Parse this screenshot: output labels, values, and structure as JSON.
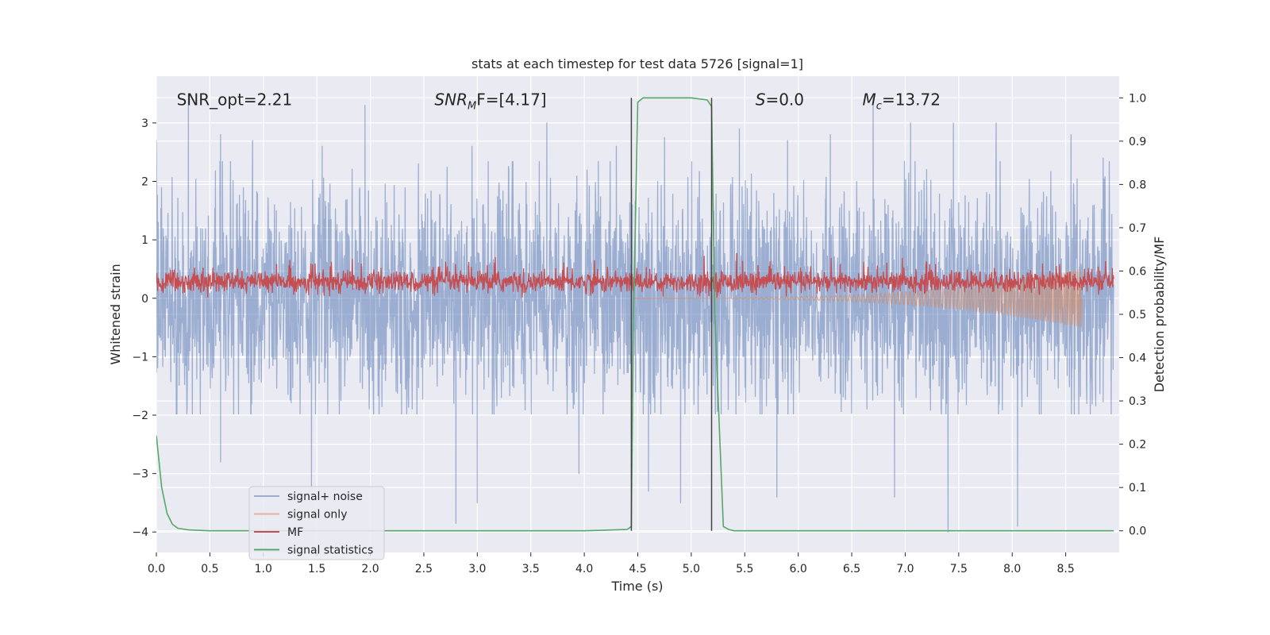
{
  "chart_data": {
    "type": "line",
    "title": "stats at each timestep for test data 5726 [signal=1]",
    "xlabel": "Time (s)",
    "ylabel": "Whitened strain",
    "y2label": "Detection probability/MF",
    "xlim": [
      0.0,
      9.0
    ],
    "ylim": [
      -4.35,
      3.8
    ],
    "y2lim": [
      -0.05,
      1.05
    ],
    "xticks": [
      0.0,
      0.5,
      1.0,
      1.5,
      2.0,
      2.5,
      3.0,
      3.5,
      4.0,
      4.5,
      5.0,
      5.5,
      6.0,
      6.5,
      7.0,
      7.5,
      8.0,
      8.5
    ],
    "xtick_labels": [
      "0.0",
      "0.5",
      "1.0",
      "1.5",
      "2.0",
      "2.5",
      "3.0",
      "3.5",
      "4.0",
      "4.5",
      "5.0",
      "5.5",
      "6.0",
      "6.5",
      "7.0",
      "7.5",
      "8.0",
      "8.5"
    ],
    "yticks": [
      -4,
      -3,
      -2,
      -1,
      0,
      1,
      2,
      3
    ],
    "ytick_labels": [
      "−4",
      "−3",
      "−2",
      "−1",
      "0",
      "1",
      "2",
      "3"
    ],
    "y2ticks": [
      0.0,
      0.1,
      0.2,
      0.3,
      0.4,
      0.5,
      0.6,
      0.7,
      0.8,
      0.9,
      1.0
    ],
    "y2tick_labels": [
      "0.0",
      "0.1",
      "0.2",
      "0.3",
      "0.4",
      "0.5",
      "0.6",
      "0.7",
      "0.8",
      "0.9",
      "1.0"
    ],
    "annotations": [
      {
        "name": "snr-opt",
        "text": "SNR_opt=2.21",
        "x": 0.19,
        "italic_prefix": "",
        "sub": "",
        "suffix": ""
      },
      {
        "name": "snr-mf",
        "text": "",
        "x": 2.6,
        "italic_prefix": "SNR",
        "sub": "M",
        "suffix": "F=[4.17]"
      },
      {
        "name": "s-value",
        "text": "",
        "x": 5.6,
        "italic_prefix": "S",
        "sub": "",
        "suffix": "=0.0"
      },
      {
        "name": "chirp-mass",
        "text": "",
        "x": 6.6,
        "italic_prefix": "M",
        "sub": "c",
        "suffix": "=13.72"
      }
    ],
    "annotation_y": 3.4,
    "vlines": [
      4.44,
      5.19
    ],
    "series": [
      {
        "name": "signal+ noise",
        "color": "#4c72b0",
        "opacity": 0.5,
        "axis": "y",
        "style": "noise",
        "sample_step": 0.003,
        "amplitude": 1.8,
        "spikes_up": [
          [
            0.0,
            2.7
          ],
          [
            0.3,
            3.5
          ],
          [
            0.6,
            2.8
          ],
          [
            0.9,
            2.7
          ],
          [
            1.55,
            2.6
          ],
          [
            1.95,
            3.3
          ],
          [
            2.45,
            2.3
          ],
          [
            2.95,
            2.6
          ],
          [
            3.65,
            3.0
          ],
          [
            4.3,
            2.6
          ],
          [
            4.75,
            2.75
          ],
          [
            5.45,
            2.9
          ],
          [
            5.9,
            2.7
          ],
          [
            6.3,
            2.8
          ],
          [
            6.7,
            3.5
          ],
          [
            7.05,
            3.0
          ],
          [
            7.45,
            3.0
          ],
          [
            7.85,
            3.0
          ],
          [
            8.55,
            2.8
          ],
          [
            8.85,
            2.4
          ]
        ],
        "spikes_down": [
          [
            0.6,
            -2.8
          ],
          [
            1.45,
            -3.25
          ],
          [
            2.8,
            -3.85
          ],
          [
            3.0,
            -3.5
          ],
          [
            3.95,
            -3.0
          ],
          [
            4.6,
            -3.3
          ],
          [
            4.9,
            -3.5
          ],
          [
            5.8,
            -3.4
          ],
          [
            6.9,
            -3.4
          ],
          [
            7.4,
            -4.0
          ],
          [
            8.05,
            -3.9
          ]
        ]
      },
      {
        "name": "signal only",
        "color": "#dd8452",
        "opacity": 0.55,
        "axis": "y",
        "style": "chirp",
        "start": 4.45,
        "end": 8.65,
        "amplitude": 0.5
      },
      {
        "name": "MF",
        "color": "#c44e52",
        "opacity": 1.0,
        "axis": "y",
        "style": "mf",
        "sample_step": 0.004,
        "base": 0.28,
        "amplitude": 0.22
      },
      {
        "name": "signal statistics",
        "color": "#55a868",
        "opacity": 1.0,
        "axis": "y2",
        "style": "line",
        "x": [
          0.0,
          0.05,
          0.1,
          0.15,
          0.2,
          0.3,
          0.5,
          1.0,
          2.0,
          3.0,
          4.0,
          4.4,
          4.44,
          4.46,
          4.5,
          4.55,
          4.6,
          4.7,
          5.0,
          5.15,
          5.19,
          5.22,
          5.3,
          5.35,
          5.4,
          6.0,
          7.0,
          8.0,
          8.95
        ],
        "values": [
          0.22,
          0.1,
          0.04,
          0.015,
          0.006,
          0.002,
          0.0,
          0.0,
          0.0,
          0.0,
          0.0,
          0.003,
          0.01,
          0.5,
          0.99,
          1.0,
          1.0,
          1.0,
          1.0,
          0.995,
          0.98,
          0.5,
          0.01,
          0.003,
          0.0,
          0.0,
          0.0,
          0.0,
          0.0
        ]
      }
    ],
    "legend_position": "lower-left"
  }
}
